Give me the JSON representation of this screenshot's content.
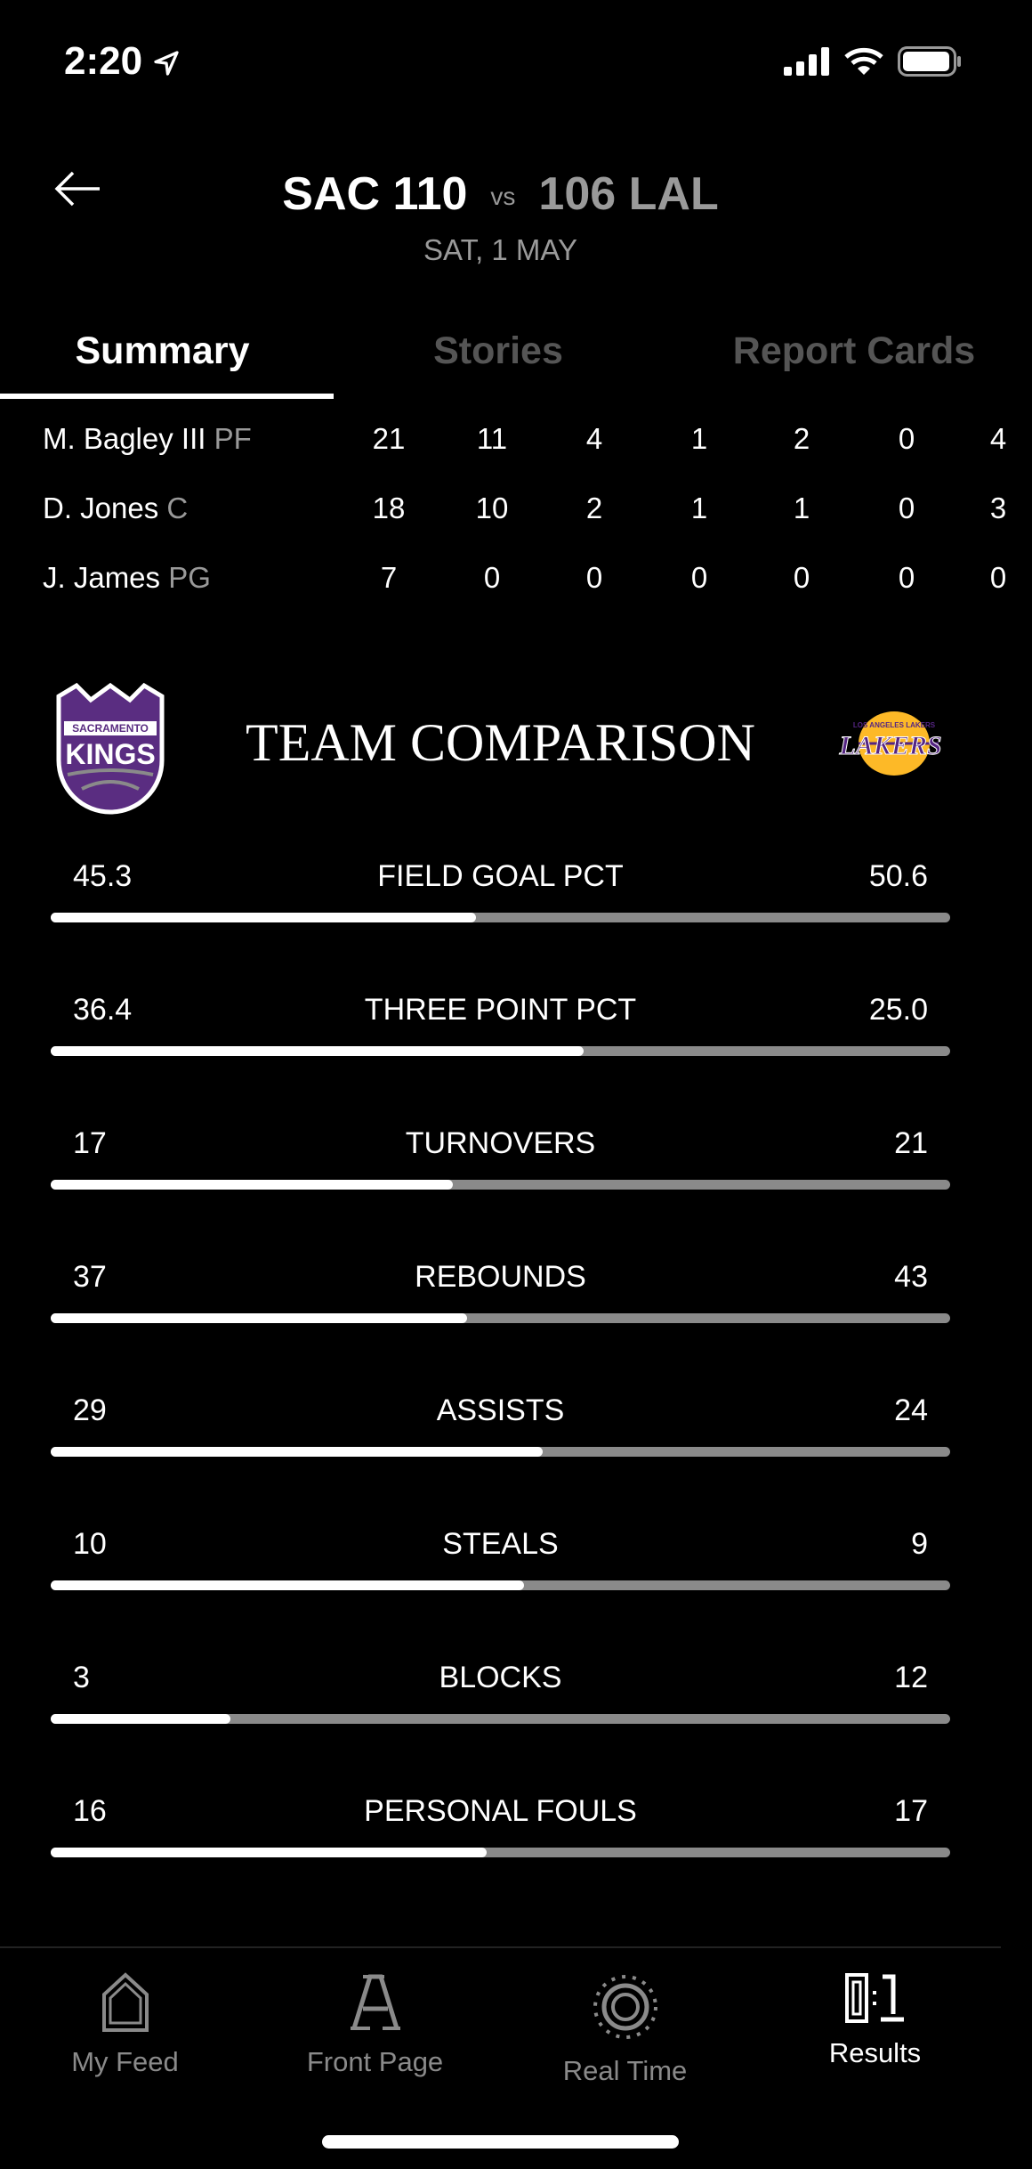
{
  "status_bar": {
    "time": "2:20",
    "icons": [
      "location-arrow-icon",
      "signal-icon",
      "wifi-icon",
      "battery-icon"
    ]
  },
  "header": {
    "home_team": "SAC 110",
    "vs": "vs",
    "away_team": "106 LAL",
    "date": "SAT, 1 MAY"
  },
  "tabs": [
    {
      "label": "Summary",
      "active": true
    },
    {
      "label": "Stories",
      "active": false
    },
    {
      "label": "Report Cards",
      "active": false
    }
  ],
  "players": [
    {
      "name": "M. Bagley III",
      "pos": "PF",
      "stats": [
        "21",
        "11",
        "4",
        "1",
        "2",
        "0",
        "4"
      ]
    },
    {
      "name": "D. Jones",
      "pos": "C",
      "stats": [
        "18",
        "10",
        "2",
        "1",
        "1",
        "0",
        "3"
      ]
    },
    {
      "name": "J. James",
      "pos": "PG",
      "stats": [
        "7",
        "0",
        "0",
        "0",
        "0",
        "0",
        "0"
      ]
    }
  ],
  "team_comparison": {
    "title": "TEAM COMPARISON",
    "left_logo_text": "SACRAMENTO KINGS",
    "right_logo_text": "LOS ANGELES LAKERS",
    "stats": [
      {
        "label": "FIELD GOAL PCT",
        "left": "45.3",
        "right": "50.6"
      },
      {
        "label": "THREE POINT PCT",
        "left": "36.4",
        "right": "25.0"
      },
      {
        "label": "TURNOVERS",
        "left": "17",
        "right": "21"
      },
      {
        "label": "REBOUNDS",
        "left": "37",
        "right": "43"
      },
      {
        "label": "ASSISTS",
        "left": "29",
        "right": "24"
      },
      {
        "label": "STEALS",
        "left": "10",
        "right": "9"
      },
      {
        "label": "BLOCKS",
        "left": "3",
        "right": "12"
      },
      {
        "label": "PERSONAL FOULS",
        "left": "16",
        "right": "17"
      }
    ]
  },
  "nav": [
    {
      "label": "My Feed",
      "icon": "house-icon",
      "active": false
    },
    {
      "label": "Front Page",
      "icon": "letter-a-icon",
      "active": false
    },
    {
      "label": "Real Time",
      "icon": "real-time-icon",
      "active": false
    },
    {
      "label": "Results",
      "icon": "scoreboard-icon",
      "active": true
    }
  ],
  "colors": {
    "kings_purple": "#5a2d81",
    "lakers_gold": "#fdb927",
    "lakers_purple": "#552583",
    "bar_track": "#8a8a8a"
  }
}
